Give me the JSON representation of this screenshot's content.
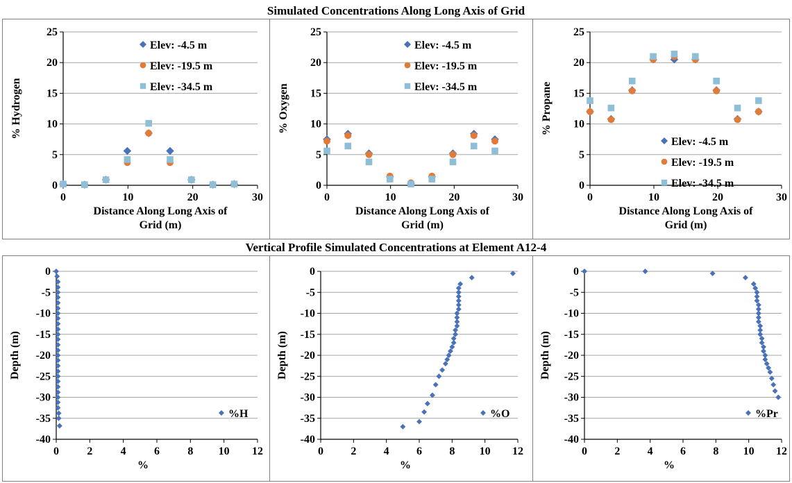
{
  "top_title": "Simulated Concentrations Along Long Axis of Grid",
  "bottom_title": "Vertical Profile Simulated Concentrations at Element A12-4",
  "colors": {
    "diamond": "#4a72b8",
    "circle": "#e07b39",
    "square": "#8fbfd8",
    "grid": "#a6a6a6",
    "border": "#7f7f7f"
  },
  "chart_data": [
    {
      "type": "scatter",
      "ylabel": "% Hydrogen",
      "xlabel": "Distance Along Long Axis of Grid (m)",
      "xlim": [
        0,
        30
      ],
      "ylim": [
        0,
        25
      ],
      "xticks": [
        0,
        10,
        20,
        30
      ],
      "yticks": [
        0,
        5,
        10,
        15,
        20,
        25
      ],
      "grid": "horizontal",
      "legend_position": "top-right",
      "series": [
        {
          "name": "Elev: -4.5 m",
          "marker": "diamond",
          "x": [
            0,
            3.3,
            6.6,
            9.9,
            13.2,
            16.5,
            19.8,
            23.1,
            26.4
          ],
          "y": [
            0.2,
            0.1,
            0.9,
            5.6,
            8.5,
            5.6,
            0.9,
            0.1,
            0.2
          ]
        },
        {
          "name": "Elev: -19.5 m",
          "marker": "circle",
          "x": [
            0,
            3.3,
            6.6,
            9.9,
            13.2,
            16.5,
            19.8,
            23.1,
            26.4
          ],
          "y": [
            0.2,
            0.1,
            0.9,
            3.7,
            8.5,
            3.7,
            0.9,
            0.1,
            0.2
          ]
        },
        {
          "name": "Elev: -34.5 m",
          "marker": "square",
          "x": [
            0,
            3.3,
            6.6,
            9.9,
            13.2,
            16.5,
            19.8,
            23.1,
            26.4
          ],
          "y": [
            0.2,
            0.1,
            0.9,
            4.2,
            10.1,
            4.2,
            0.9,
            0.1,
            0.2
          ]
        }
      ]
    },
    {
      "type": "scatter",
      "ylabel": "% Oxygen",
      "xlabel": "Distance Along Long Axis of Grid (m)",
      "xlim": [
        0,
        30
      ],
      "ylim": [
        0,
        25
      ],
      "xticks": [
        0,
        10,
        20,
        30
      ],
      "yticks": [
        0,
        5,
        10,
        15,
        20,
        25
      ],
      "grid": "horizontal",
      "legend_position": "top-right",
      "series": [
        {
          "name": "Elev: -4.5 m",
          "marker": "diamond",
          "x": [
            0,
            3.3,
            6.6,
            9.9,
            13.2,
            16.5,
            19.8,
            23.1,
            26.4
          ],
          "y": [
            7.5,
            8.4,
            5.2,
            1.4,
            0.3,
            1.4,
            5.2,
            8.4,
            7.5
          ]
        },
        {
          "name": "Elev: -19.5 m",
          "marker": "circle",
          "x": [
            0,
            3.3,
            6.6,
            9.9,
            13.2,
            16.5,
            19.8,
            23.1,
            26.4
          ],
          "y": [
            7.2,
            8.1,
            5.0,
            1.5,
            0.4,
            1.5,
            5.0,
            8.1,
            7.2
          ]
        },
        {
          "name": "Elev: -34.5 m",
          "marker": "square",
          "x": [
            0,
            3.3,
            6.6,
            9.9,
            13.2,
            16.5,
            19.8,
            23.1,
            26.4
          ],
          "y": [
            5.6,
            6.4,
            3.8,
            1.0,
            0.2,
            1.0,
            3.8,
            6.4,
            5.6
          ]
        }
      ]
    },
    {
      "type": "scatter",
      "ylabel": "% Propane",
      "xlabel": "Distance Along Long Axis of Grid (m)",
      "xlim": [
        0,
        30
      ],
      "ylim": [
        0,
        25
      ],
      "xticks": [
        0,
        10,
        20,
        30
      ],
      "yticks": [
        0,
        5,
        10,
        15,
        20,
        25
      ],
      "grid": "horizontal",
      "legend_position": "bottom-right",
      "series": [
        {
          "name": "Elev: -4.5 m",
          "marker": "diamond",
          "x": [
            0,
            3.3,
            6.6,
            9.9,
            13.2,
            16.5,
            19.8,
            23.1,
            26.4
          ],
          "y": [
            12.0,
            10.8,
            15.5,
            20.5,
            20.5,
            20.5,
            15.5,
            10.8,
            12.0
          ]
        },
        {
          "name": "Elev: -19.5 m",
          "marker": "circle",
          "x": [
            0,
            3.3,
            6.6,
            9.9,
            13.2,
            16.5,
            19.8,
            23.1,
            26.4
          ],
          "y": [
            12.0,
            10.7,
            15.4,
            20.5,
            21.0,
            20.5,
            15.4,
            10.7,
            12.0
          ]
        },
        {
          "name": "Elev: -34.5 m",
          "marker": "square",
          "x": [
            0,
            3.3,
            6.6,
            9.9,
            13.2,
            16.5,
            19.8,
            23.1,
            26.4
          ],
          "y": [
            13.8,
            12.6,
            17.0,
            21.0,
            21.4,
            21.0,
            17.0,
            12.6,
            13.8
          ]
        }
      ]
    },
    {
      "type": "scatter",
      "ylabel": "Depth (m)",
      "xlabel": "%",
      "xlim": [
        0,
        12
      ],
      "ylim": [
        -40,
        0
      ],
      "xticks": [
        0,
        2,
        4,
        6,
        8,
        10,
        12
      ],
      "yticks": [
        0,
        -5,
        -10,
        -15,
        -20,
        -25,
        -30,
        -35,
        -40
      ],
      "grid": "horizontal",
      "legend_position": "bottom-right",
      "series": [
        {
          "name": "%H",
          "marker": "diamond",
          "x": [
            0.0,
            0.05,
            0.1,
            0.1,
            0.1,
            0.1,
            0.1,
            0.1,
            0.1,
            0.1,
            0.1,
            0.1,
            0.1,
            0.1,
            0.1,
            0.1,
            0.1,
            0.1,
            0.1,
            0.1,
            0.1,
            0.1,
            0.1,
            0.1,
            0.1,
            0.1,
            0.1,
            0.15,
            0.15,
            0.2
          ],
          "y": [
            0,
            -1.2,
            -2.5,
            -3.8,
            -5.0,
            -6.2,
            -7.5,
            -8.8,
            -10.0,
            -11.2,
            -12.5,
            -13.8,
            -15.0,
            -16.2,
            -17.5,
            -18.8,
            -20.0,
            -21.2,
            -22.5,
            -23.8,
            -25.0,
            -26.2,
            -27.5,
            -28.8,
            -30.0,
            -31.2,
            -32.5,
            -33.8,
            -35.0,
            -36.8
          ]
        }
      ]
    },
    {
      "type": "scatter",
      "ylabel": "Depth (m)",
      "xlabel": "%",
      "xlim": [
        0,
        12
      ],
      "ylim": [
        -40,
        0
      ],
      "xticks": [
        0,
        2,
        4,
        6,
        8,
        10,
        12
      ],
      "yticks": [
        0,
        -5,
        -10,
        -15,
        -20,
        -25,
        -30,
        -35,
        -40
      ],
      "grid": "horizontal",
      "legend_position": "bottom-right",
      "series": [
        {
          "name": "%O",
          "marker": "diamond",
          "x": [
            11.7,
            9.2,
            8.5,
            8.4,
            8.4,
            8.4,
            8.4,
            8.4,
            8.4,
            8.3,
            8.3,
            8.3,
            8.3,
            8.2,
            8.2,
            8.1,
            8.1,
            8.0,
            7.9,
            7.8,
            7.7,
            7.6,
            7.4,
            7.2,
            7.0,
            6.8,
            6.5,
            6.3,
            6.0,
            5.0
          ],
          "y": [
            -0.5,
            -1.5,
            -3.0,
            -4.0,
            -5.0,
            -6.0,
            -7.0,
            -8.0,
            -9.0,
            -10.0,
            -11.0,
            -12.0,
            -13.0,
            -14.0,
            -15.0,
            -16.0,
            -17.0,
            -18.0,
            -19.0,
            -20.0,
            -21.0,
            -22.0,
            -23.5,
            -25.0,
            -27.0,
            -29.5,
            -31.5,
            -33.5,
            -35.8,
            -37.0
          ]
        }
      ]
    },
    {
      "type": "scatter",
      "ylabel": "Depth (m)",
      "xlabel": "%",
      "xlim": [
        0,
        12
      ],
      "ylim": [
        -40,
        0
      ],
      "xticks": [
        0,
        2,
        4,
        6,
        8,
        10,
        12
      ],
      "yticks": [
        0,
        -5,
        -10,
        -15,
        -20,
        -25,
        -30,
        -35,
        -40
      ],
      "grid": "horizontal",
      "legend_position": "bottom-right",
      "series": [
        {
          "name": "%Pr",
          "marker": "diamond",
          "x": [
            0.0,
            3.7,
            7.8,
            9.8,
            10.3,
            10.4,
            10.5,
            10.5,
            10.5,
            10.6,
            10.6,
            10.6,
            10.6,
            10.6,
            10.7,
            10.7,
            10.7,
            10.8,
            10.8,
            10.9,
            10.9,
            11.0,
            11.0,
            11.1,
            11.2,
            11.3,
            11.4,
            11.5,
            11.6,
            11.8
          ],
          "y": [
            0,
            0,
            -0.5,
            -1.5,
            -3.0,
            -4.0,
            -5.0,
            -6.0,
            -7.0,
            -8.0,
            -9.0,
            -10.0,
            -11.0,
            -12.0,
            -13.0,
            -14.0,
            -15.0,
            -16.0,
            -17.0,
            -18.0,
            -19.0,
            -20.0,
            -21.0,
            -22.0,
            -23.0,
            -24.0,
            -25.5,
            -27.0,
            -28.5,
            -30.0
          ]
        }
      ]
    }
  ]
}
